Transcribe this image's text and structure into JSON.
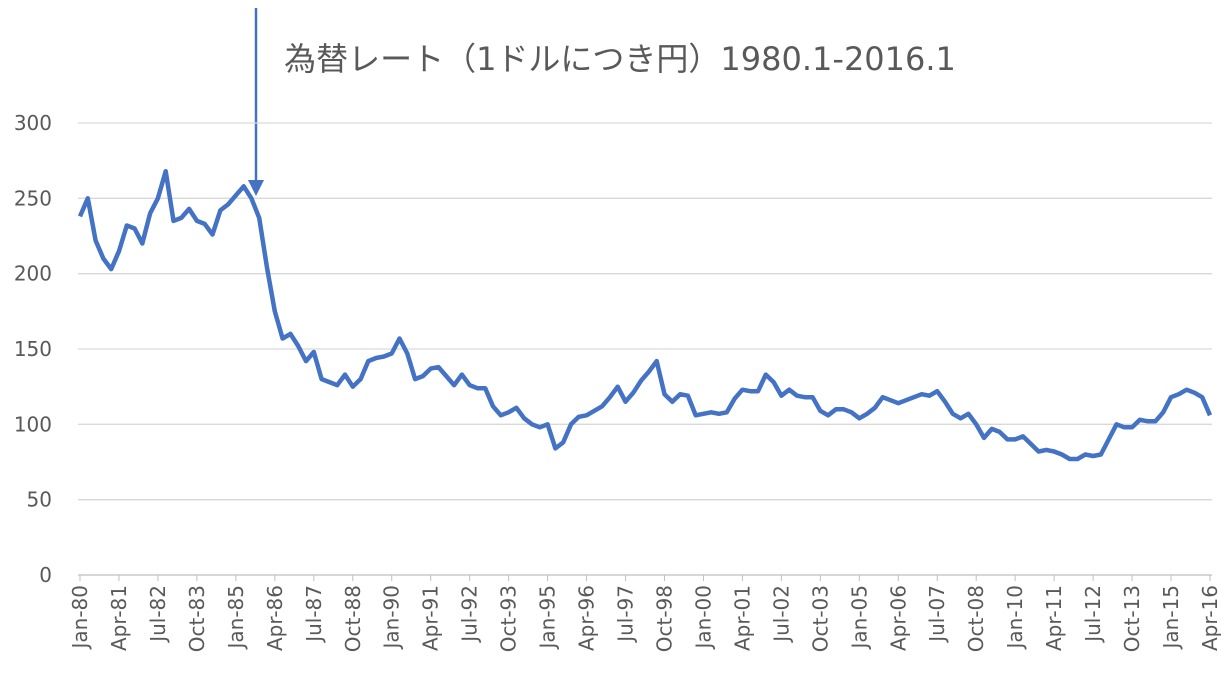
{
  "chart_data": {
    "type": "line",
    "title": "為替レート（1ドルにつき円）1980.1-2016.1",
    "categories": [
      "Jan-80",
      null,
      null,
      null,
      null,
      "Apr-81",
      null,
      null,
      null,
      null,
      "Jul-82",
      null,
      null,
      null,
      null,
      "Oct-83",
      null,
      null,
      null,
      null,
      "Jan-85",
      null,
      null,
      null,
      null,
      "Apr-86",
      null,
      null,
      null,
      null,
      "Jul-87",
      null,
      null,
      null,
      null,
      "Oct-88",
      null,
      null,
      null,
      null,
      "Jan-90",
      null,
      null,
      null,
      null,
      "Apr-91",
      null,
      null,
      null,
      null,
      "Jul-92",
      null,
      null,
      null,
      null,
      "Oct-93",
      null,
      null,
      null,
      null,
      "Jan-95",
      null,
      null,
      null,
      null,
      "Apr-96",
      null,
      null,
      null,
      null,
      "Jul-97",
      null,
      null,
      null,
      null,
      "Oct-98",
      null,
      null,
      null,
      null,
      "Jan-00",
      null,
      null,
      null,
      null,
      "Apr-01",
      null,
      null,
      null,
      null,
      "Jul-02",
      null,
      null,
      null,
      null,
      "Oct-03",
      null,
      null,
      null,
      null,
      "Jan-05",
      null,
      null,
      null,
      null,
      "Apr-06",
      null,
      null,
      null,
      null,
      "Jul-07",
      null,
      null,
      null,
      null,
      "Oct-08",
      null,
      null,
      null,
      null,
      "Jan-10",
      null,
      null,
      null,
      null,
      "Apr-11",
      null,
      null,
      null,
      null,
      "Jul-12",
      null,
      null,
      null,
      null,
      "Oct-13",
      null,
      null,
      null,
      null,
      "Jan-15",
      null,
      null,
      null,
      null,
      "Apr-16"
    ],
    "series": [
      {
        "color": "#4472c4",
        "values": [
          238,
          250,
          222,
          210,
          203,
          215,
          232,
          230,
          220,
          240,
          250,
          268,
          235,
          237,
          243,
          235,
          233,
          226,
          242,
          246,
          252,
          258,
          250,
          237,
          204,
          175,
          157,
          160,
          152,
          142,
          148,
          130,
          128,
          126,
          133,
          125,
          130,
          142,
          144,
          145,
          147,
          157,
          147,
          130,
          132,
          137,
          138,
          132,
          126,
          133,
          126,
          124,
          124,
          112,
          106,
          108,
          111,
          104,
          100,
          98,
          100,
          84,
          88,
          100,
          105,
          106,
          109,
          112,
          118,
          125,
          115,
          121,
          129,
          135,
          142,
          120,
          115,
          120,
          119,
          106,
          107,
          108,
          107,
          108,
          117,
          123,
          122,
          122,
          133,
          128,
          119,
          123,
          119,
          118,
          118,
          109,
          106,
          110,
          110,
          108,
          104,
          107,
          111,
          118,
          116,
          114,
          116,
          118,
          120,
          119,
          122,
          115,
          107,
          104,
          107,
          100,
          91,
          97,
          95,
          90,
          90,
          92,
          87,
          82,
          83,
          82,
          80,
          77,
          77,
          80,
          79,
          80,
          90,
          100,
          98,
          98,
          103,
          102,
          102,
          108,
          118,
          120,
          123,
          121,
          118,
          106
        ]
      }
    ],
    "ylim": [
      0,
      300
    ],
    "yticks": [
      0,
      50,
      100,
      150,
      200,
      250,
      300
    ],
    "grid": true
  }
}
